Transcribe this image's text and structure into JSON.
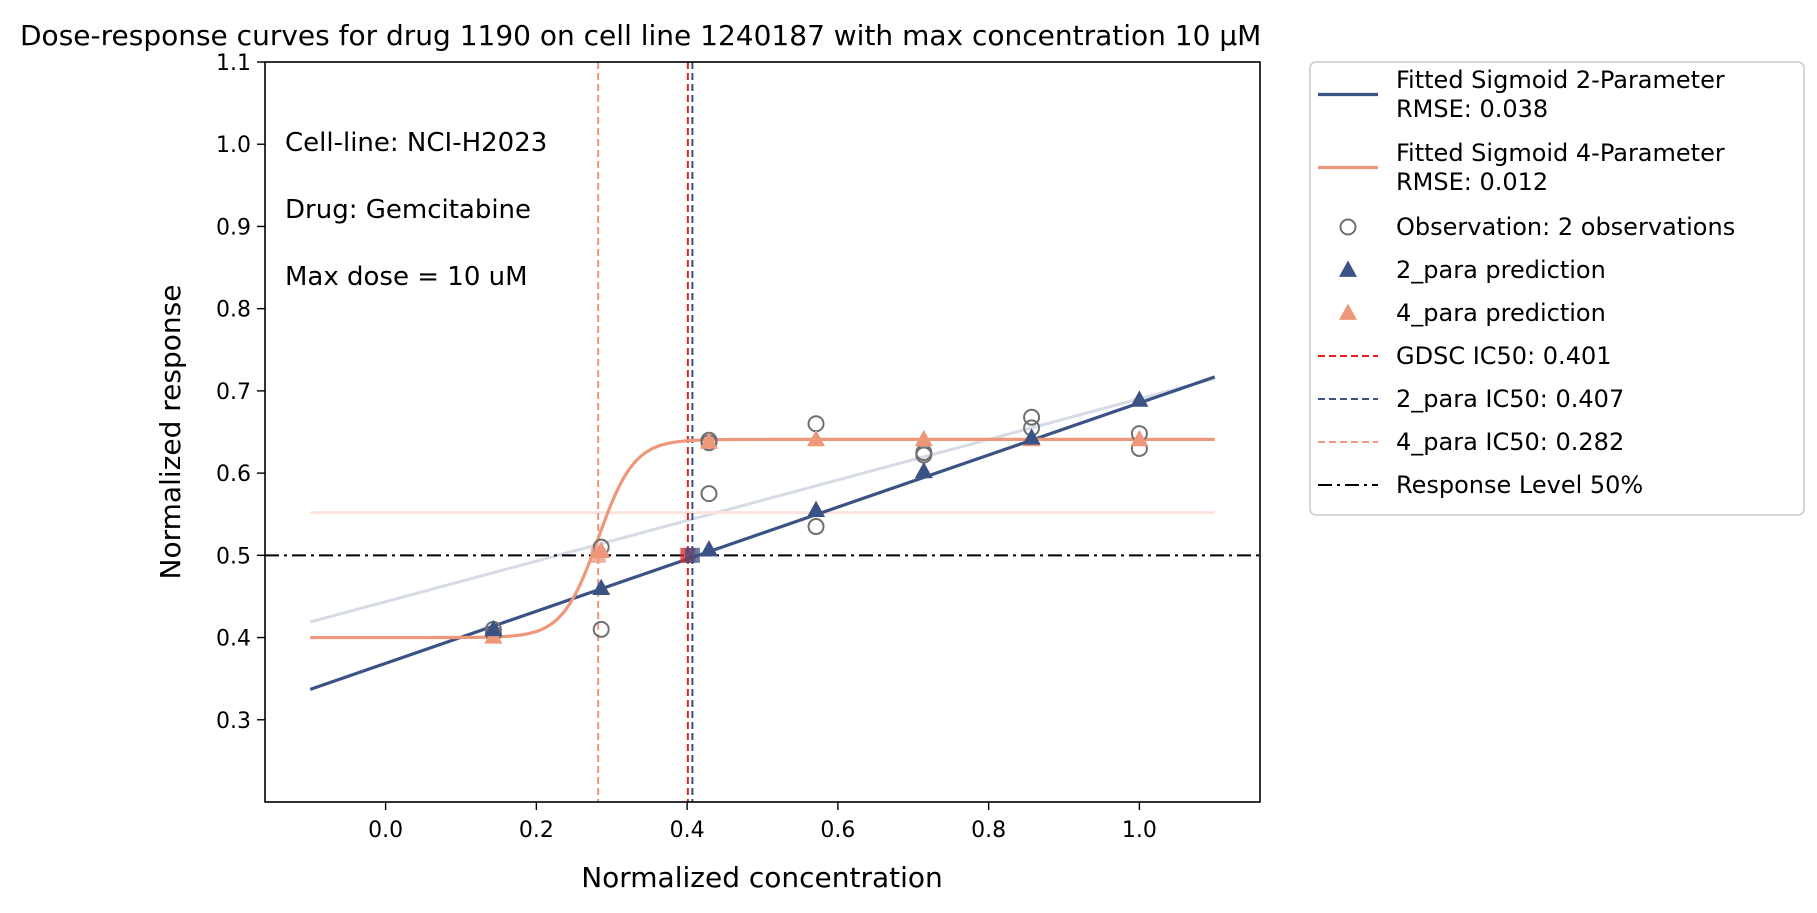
{
  "chart_data": {
    "type": "line",
    "title": "Dose-response curves for drug 1190 on cell line 1240187 with max concentration 10 μM",
    "xlabel": "Normalized concentration",
    "ylabel": "Normalized response",
    "xlim": [
      -0.16,
      1.16
    ],
    "ylim": [
      0.2,
      1.1
    ],
    "x_ticks": [
      "0.0",
      "0.2",
      "0.4",
      "0.6",
      "0.8",
      "1.0"
    ],
    "y_ticks": [
      "0.3",
      "0.4",
      "0.5",
      "0.6",
      "0.7",
      "0.8",
      "0.9",
      "1.0",
      "1.1"
    ],
    "grid": false,
    "legend_position": "outside-right",
    "annotations": [
      "Cell-line: NCI-H2023",
      "Drug: Gemcitabine",
      "Max dose = 10 uM"
    ],
    "colors": {
      "sigmoid2": "#3b5285",
      "sigmoid4": "#ef977b",
      "gdsc": "#e8201e",
      "observation": "#707070",
      "response_level": "#000000"
    },
    "series": [
      {
        "name": "Fitted Sigmoid 2-Parameter",
        "kind": "line",
        "x": [
          -0.1,
          1.1
        ],
        "y": [
          0.337,
          0.717
        ]
      },
      {
        "name": "Fitted Sigmoid 4-Parameter",
        "kind": "sigmoid",
        "bottom": 0.4,
        "top": 0.641,
        "ic50": 0.282,
        "slope": 42,
        "x_range": [
          -0.1,
          1.1
        ]
      },
      {
        "kind": "background-line",
        "x": [
          -0.1,
          1.1
        ],
        "y": [
          0.419,
          0.715
        ]
      },
      {
        "kind": "background-line",
        "x": [
          -0.1,
          1.1
        ],
        "y": [
          0.552,
          0.552
        ]
      },
      {
        "name": "Observation: 2 observations",
        "kind": "scatter",
        "x": [
          0.143,
          0.143,
          0.286,
          0.286,
          0.429,
          0.429,
          0.429,
          0.571,
          0.571,
          0.714,
          0.714,
          0.857,
          0.857,
          1.0,
          1.0
        ],
        "y": [
          0.41,
          0.405,
          0.51,
          0.41,
          0.64,
          0.637,
          0.575,
          0.66,
          0.535,
          0.625,
          0.622,
          0.668,
          0.655,
          0.648,
          0.63
        ]
      },
      {
        "name": "2_para prediction",
        "kind": "scatter",
        "x": [
          0.143,
          0.286,
          0.429,
          0.571,
          0.714,
          0.857,
          1.0
        ],
        "y": [
          0.41,
          0.46,
          0.507,
          0.555,
          0.602,
          0.643,
          0.689
        ]
      },
      {
        "name": "4_para prediction",
        "kind": "scatter",
        "x": [
          0.143,
          0.286,
          0.429,
          0.571,
          0.714,
          0.857,
          1.0
        ],
        "y": [
          0.401,
          0.505,
          0.638,
          0.641,
          0.641,
          0.641,
          0.641
        ]
      }
    ],
    "ic50_markers": [
      {
        "name": "GDSC IC50: 0.401",
        "x": 0.401
      },
      {
        "name": "2_para IC50: 0.407",
        "x": 0.407
      },
      {
        "name": "4_para IC50: 0.282",
        "x": 0.282
      }
    ],
    "ic50_points": [
      {
        "x": 0.401,
        "y": 0.5
      },
      {
        "x": 0.407,
        "y": 0.5
      },
      {
        "x": 0.282,
        "y": 0.5
      }
    ],
    "response_level": {
      "name": "Response Level 50%",
      "y": 0.5
    },
    "legend": [
      {
        "label": "Fitted Sigmoid 2-Parameter",
        "label2": "RMSE: 0.038",
        "marker": "line",
        "color": "#3b5285"
      },
      {
        "label": "Fitted Sigmoid 4-Parameter",
        "label2": "RMSE: 0.012",
        "marker": "line",
        "color": "#ef977b"
      },
      {
        "label": "Observation: 2 observations",
        "marker": "circle",
        "color": "#707070"
      },
      {
        "label": "2_para prediction",
        "marker": "triangle",
        "color": "#3b5285"
      },
      {
        "label": "4_para prediction",
        "marker": "triangle",
        "color": "#ef977b"
      },
      {
        "label": "GDSC IC50: 0.401",
        "marker": "dashed",
        "color": "#e8201e"
      },
      {
        "label": "2_para IC50: 0.407",
        "marker": "dashed",
        "color": "#3b5285"
      },
      {
        "label": "4_para IC50: 0.282",
        "marker": "dashed",
        "color": "#ef977b"
      },
      {
        "label": "Response Level 50%",
        "marker": "dashdot",
        "color": "#000000"
      }
    ]
  }
}
